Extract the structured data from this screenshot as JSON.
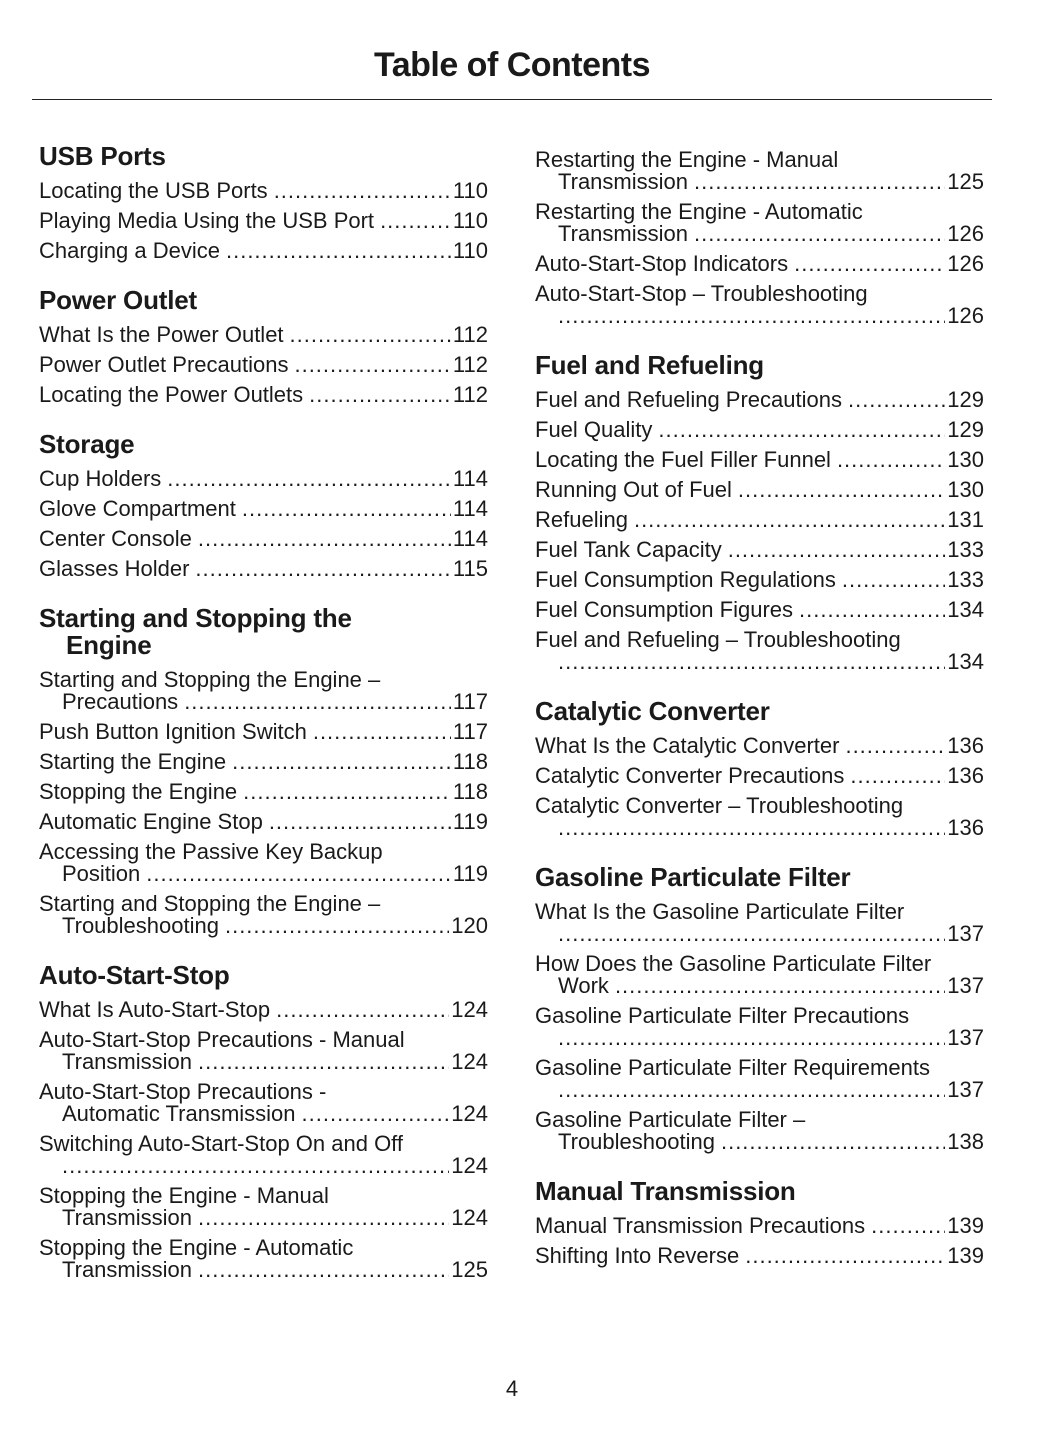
{
  "title": "Table of Contents",
  "page_number": "4",
  "left": [
    {
      "heading": "USB Ports",
      "entries": [
        {
          "text": "Locating the USB Ports",
          "page": "110"
        },
        {
          "text": "Playing Media Using the USB Port",
          "page": "110"
        },
        {
          "text": "Charging a Device",
          "page": "110"
        }
      ]
    },
    {
      "heading": "Power Outlet",
      "entries": [
        {
          "text": "What Is the Power Outlet",
          "page": "112"
        },
        {
          "text": "Power Outlet Precautions",
          "page": "112"
        },
        {
          "text": "Locating the Power Outlets",
          "page": "112"
        }
      ]
    },
    {
      "heading": "Storage",
      "entries": [
        {
          "text": "Cup Holders",
          "page": "114"
        },
        {
          "text": "Glove Compartment",
          "page": "114"
        },
        {
          "text": "Center Console",
          "page": "114"
        },
        {
          "text": "Glasses Holder",
          "page": "115"
        }
      ]
    },
    {
      "heading": "Starting and Stopping the",
      "heading_cont": "Engine",
      "entries": [
        {
          "text": "Starting and Stopping the Engine –",
          "cont": "Precautions",
          "page": "117"
        },
        {
          "text": "Push Button Ignition Switch",
          "page": "117"
        },
        {
          "text": "Starting the Engine",
          "page": "118"
        },
        {
          "text": "Stopping the Engine",
          "page": "118"
        },
        {
          "text": "Automatic Engine Stop",
          "page": "119"
        },
        {
          "text": "Accessing the Passive Key Backup",
          "cont": "Position",
          "page": "119"
        },
        {
          "text": "Starting and Stopping the Engine –",
          "cont": "Troubleshooting",
          "page": "120"
        }
      ]
    },
    {
      "heading": "Auto-Start-Stop",
      "entries": [
        {
          "text": "What Is Auto-Start-Stop",
          "page": "124"
        },
        {
          "text": "Auto-Start-Stop Precautions - Manual",
          "cont": "Transmission",
          "page": "124"
        },
        {
          "text": "Auto-Start-Stop Precautions -",
          "cont": "Automatic Transmission",
          "page": "124"
        },
        {
          "text": "Switching Auto-Start-Stop On and Off",
          "cont": "",
          "page": "124"
        },
        {
          "text": "Stopping the Engine - Manual",
          "cont": "Transmission",
          "page": "124"
        },
        {
          "text": "Stopping the Engine - Automatic",
          "cont": "Transmission",
          "page": "125"
        }
      ]
    }
  ],
  "right": [
    {
      "heading": "",
      "entries": [
        {
          "text": "Restarting the Engine - Manual",
          "cont": "Transmission",
          "page": "125"
        },
        {
          "text": "Restarting the Engine - Automatic",
          "cont": "Transmission",
          "page": "126"
        },
        {
          "text": "Auto-Start-Stop Indicators",
          "page": "126"
        },
        {
          "text": "Auto-Start-Stop – Troubleshooting",
          "cont": "",
          "page": "126"
        }
      ]
    },
    {
      "heading": "Fuel and Refueling",
      "entries": [
        {
          "text": "Fuel and Refueling Precautions",
          "page": "129"
        },
        {
          "text": "Fuel Quality",
          "page": "129"
        },
        {
          "text": "Locating the Fuel Filler Funnel",
          "page": "130"
        },
        {
          "text": "Running Out of Fuel",
          "page": "130"
        },
        {
          "text": "Refueling",
          "page": "131"
        },
        {
          "text": "Fuel Tank Capacity",
          "page": "133"
        },
        {
          "text": "Fuel Consumption Regulations",
          "page": "133"
        },
        {
          "text": "Fuel Consumption Figures",
          "page": "134"
        },
        {
          "text": "Fuel and Refueling – Troubleshooting",
          "cont": "",
          "page": "134"
        }
      ]
    },
    {
      "heading": "Catalytic Converter",
      "entries": [
        {
          "text": "What Is the Catalytic Converter",
          "page": "136"
        },
        {
          "text": "Catalytic Converter Precautions",
          "page": "136"
        },
        {
          "text": "Catalytic Converter – Troubleshooting",
          "cont": "",
          "page": "136"
        }
      ]
    },
    {
      "heading": "Gasoline Particulate Filter",
      "entries": [
        {
          "text": "What Is the Gasoline Particulate Filter",
          "cont": "",
          "page": "137"
        },
        {
          "text": "How Does the Gasoline Particulate Filter",
          "cont": "Work",
          "page": "137"
        },
        {
          "text": "Gasoline Particulate Filter Precautions",
          "cont": "",
          "page": "137"
        },
        {
          "text": "Gasoline Particulate Filter Requirements",
          "cont": "",
          "page": "137"
        },
        {
          "text": "Gasoline Particulate Filter –",
          "cont": "Troubleshooting",
          "page": "138"
        }
      ]
    },
    {
      "heading": "Manual Transmission",
      "entries": [
        {
          "text": "Manual Transmission Precautions",
          "page": "139"
        },
        {
          "text": "Shifting Into Reverse",
          "page": "139"
        }
      ]
    }
  ]
}
